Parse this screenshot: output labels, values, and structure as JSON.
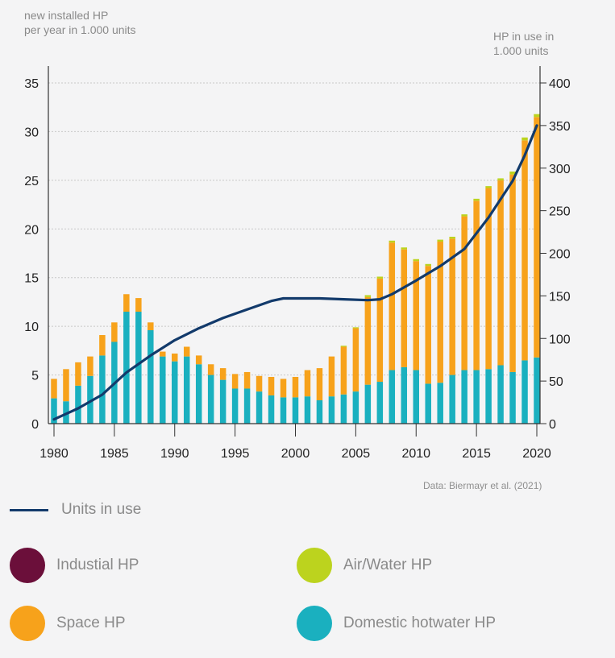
{
  "chart_data": {
    "type": "bar",
    "stacked": true,
    "title": "",
    "y_left_label": "new installed HP\nper year in 1.000 units",
    "y_right_label": "HP in use in\n1.000 units",
    "xlabel": "",
    "ylim_left": [
      0,
      35
    ],
    "ylim_right": [
      0,
      400
    ],
    "yticks_left": [
      0,
      5,
      10,
      15,
      20,
      25,
      30,
      35
    ],
    "yticks_right": [
      0,
      50,
      100,
      150,
      200,
      250,
      300,
      350,
      400
    ],
    "xticks": [
      1980,
      1985,
      1990,
      1995,
      2000,
      2005,
      2010,
      2015,
      2020
    ],
    "categories": [
      1980,
      1981,
      1982,
      1983,
      1984,
      1985,
      1986,
      1987,
      1988,
      1989,
      1990,
      1991,
      1992,
      1993,
      1994,
      1995,
      1996,
      1997,
      1998,
      1999,
      2000,
      2001,
      2002,
      2003,
      2004,
      2005,
      2006,
      2007,
      2008,
      2009,
      2010,
      2011,
      2012,
      2013,
      2014,
      2015,
      2016,
      2017,
      2018,
      2019,
      2020
    ],
    "series": [
      {
        "name": "Domestic hotwater HP",
        "color": "#1ab0bf",
        "values": [
          2.6,
          2.3,
          3.9,
          4.9,
          7.0,
          8.4,
          11.5,
          11.5,
          9.6,
          6.9,
          6.4,
          6.9,
          6.1,
          5.0,
          4.5,
          3.6,
          3.6,
          3.3,
          2.9,
          2.7,
          2.7,
          2.8,
          2.4,
          2.8,
          3.0,
          3.3,
          4.0,
          4.3,
          5.5,
          5.8,
          5.5,
          4.1,
          4.2,
          5.0,
          5.5,
          5.5,
          5.6,
          6.0,
          5.3,
          6.5,
          6.8
        ]
      },
      {
        "name": "Space HP",
        "color": "#f7a21b",
        "values": [
          2.0,
          3.3,
          2.4,
          2.0,
          2.1,
          2.0,
          1.8,
          1.4,
          0.8,
          0.5,
          0.8,
          1.0,
          0.9,
          1.1,
          1.2,
          1.5,
          1.7,
          1.6,
          1.9,
          1.9,
          2.1,
          2.7,
          3.3,
          4.1,
          4.9,
          6.5,
          9.0,
          10.6,
          13.1,
          12.1,
          11.2,
          12.1,
          14.5,
          14.0,
          15.8,
          17.4,
          18.6,
          19.0,
          20.3,
          22.6,
          24.7
        ]
      },
      {
        "name": "Air/Water HP",
        "color": "#bcd31e",
        "values": [
          0,
          0,
          0,
          0,
          0,
          0,
          0,
          0,
          0,
          0,
          0,
          0,
          0,
          0,
          0,
          0,
          0,
          0,
          0,
          0,
          0,
          0,
          0,
          0,
          0.1,
          0.1,
          0.2,
          0.2,
          0.2,
          0.2,
          0.2,
          0.2,
          0.2,
          0.2,
          0.2,
          0.2,
          0.2,
          0.2,
          0.3,
          0.3,
          0.3
        ]
      },
      {
        "name": "Industial HP",
        "color": "#6b0f3a",
        "values": [
          0,
          0,
          0,
          0,
          0,
          0,
          0,
          0,
          0,
          0,
          0,
          0,
          0,
          0,
          0,
          0,
          0,
          0,
          0,
          0,
          0,
          0,
          0,
          0,
          0,
          0,
          0,
          0,
          0,
          0,
          0,
          0,
          0,
          0,
          0,
          0,
          0,
          0,
          0,
          0,
          0
        ]
      }
    ],
    "line_series": {
      "name": "Units in use",
      "axis": "right",
      "color": "#123a6b",
      "x": [
        1980,
        1982,
        1984,
        1986,
        1988,
        1990,
        1992,
        1994,
        1996,
        1998,
        1999,
        2000,
        2002,
        2004,
        2006,
        2007,
        2008,
        2010,
        2012,
        2014,
        2016,
        2018,
        2019,
        2020
      ],
      "values": [
        5,
        18,
        34,
        60,
        80,
        98,
        112,
        124,
        134,
        144,
        147,
        147,
        147,
        146,
        145,
        146,
        152,
        168,
        185,
        205,
        242,
        285,
        315,
        350
      ]
    },
    "source": "Data: Biermayr et al. (2021)",
    "legend": {
      "line": "Units in use",
      "items": [
        {
          "label": "Industial HP",
          "color": "#6b0f3a"
        },
        {
          "label": "Air/Water HP",
          "color": "#bcd31e"
        },
        {
          "label": "Space HP",
          "color": "#f7a21b"
        },
        {
          "label": "Domestic hotwater HP",
          "color": "#1ab0bf"
        }
      ]
    }
  }
}
